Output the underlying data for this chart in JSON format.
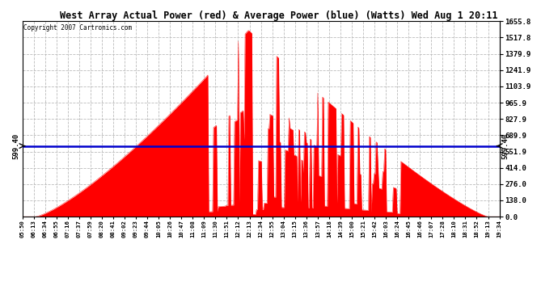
{
  "title": "West Array Actual Power (red) & Average Power (blue) (Watts) Wed Aug 1 20:11",
  "copyright": "Copyright 2007 Cartronics.com",
  "avg_power": 599.4,
  "avg_label": "599.40",
  "y_max": 1655.8,
  "y_min": 0.0,
  "y_ticks": [
    0.0,
    138.0,
    276.0,
    414.0,
    551.9,
    689.9,
    827.9,
    965.9,
    1103.9,
    1241.9,
    1379.9,
    1517.8,
    1655.8
  ],
  "background_color": "#ffffff",
  "fill_color": "#ff0000",
  "line_color": "#0000cc",
  "grid_color": "#bbbbbb",
  "x_labels": [
    "05:50",
    "06:13",
    "06:34",
    "06:55",
    "07:16",
    "07:37",
    "07:59",
    "08:20",
    "08:41",
    "09:02",
    "09:23",
    "09:44",
    "10:05",
    "10:26",
    "10:47",
    "11:08",
    "11:09",
    "11:30",
    "11:51",
    "12:12",
    "12:13",
    "12:34",
    "12:55",
    "13:04",
    "13:15",
    "13:36",
    "13:57",
    "14:18",
    "14:39",
    "15:00",
    "15:21",
    "15:42",
    "16:03",
    "16:24",
    "16:45",
    "16:46",
    "17:07",
    "17:28",
    "18:10",
    "18:31",
    "18:52",
    "19:13",
    "19:34"
  ]
}
